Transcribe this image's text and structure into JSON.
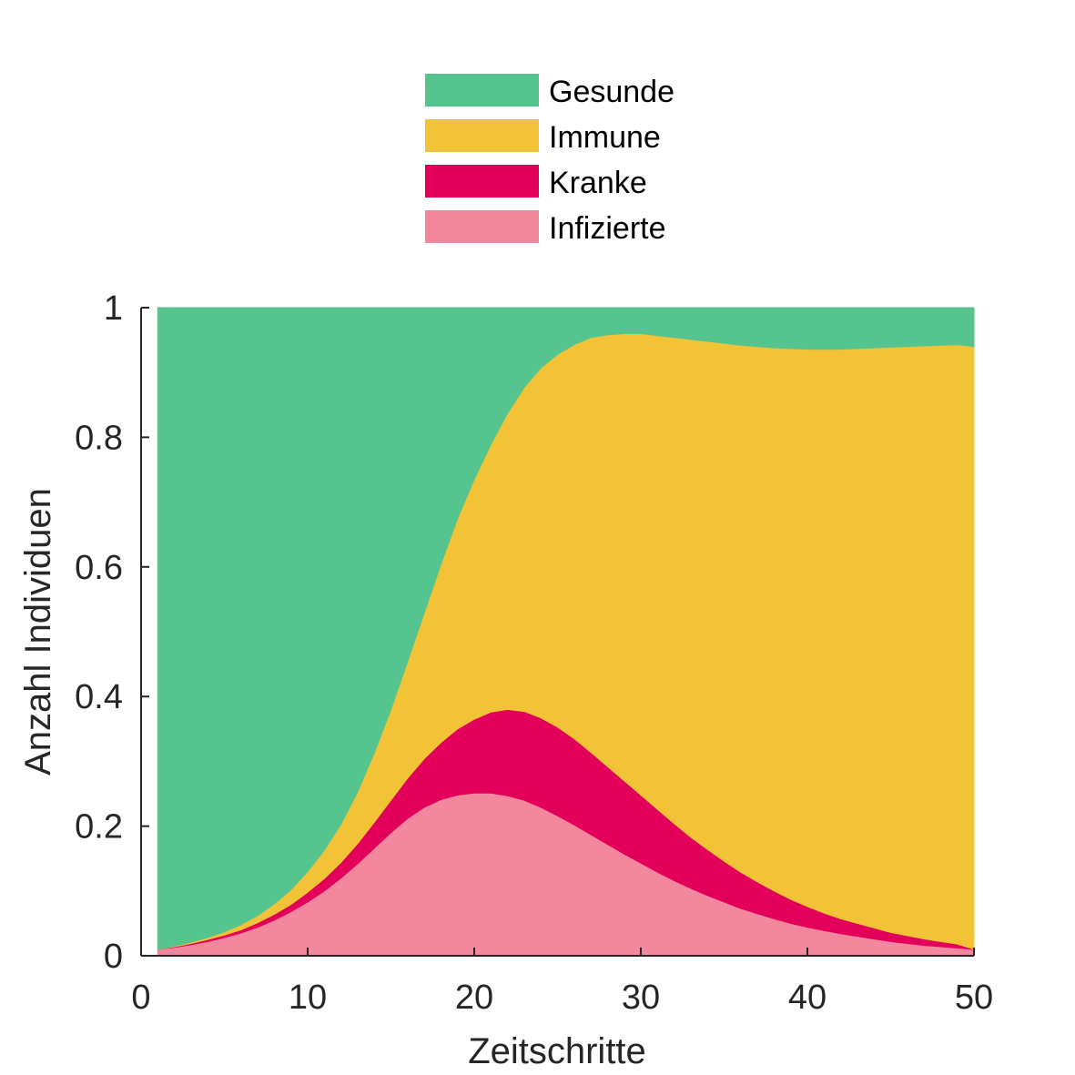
{
  "chart_data": {
    "type": "area",
    "stacked": true,
    "xlabel": "Zeitschritte",
    "ylabel": "Anzahl Individuen",
    "xlim": [
      0,
      50
    ],
    "ylim": [
      0,
      1
    ],
    "xticks": [
      0,
      10,
      20,
      30,
      40,
      50
    ],
    "xtick_labels": [
      "0",
      "10",
      "20",
      "30",
      "40",
      "50"
    ],
    "yticks": [
      0,
      0.2,
      0.4,
      0.6,
      0.8,
      1
    ],
    "ytick_labels": [
      "0",
      "0.2",
      "0.4",
      "0.6",
      "0.8",
      "1"
    ],
    "grid": false,
    "legend_position": "top-center",
    "legend_order": [
      "Gesunde",
      "Immune",
      "Kranke",
      "Infizierte"
    ],
    "x": [
      1,
      2,
      3,
      4,
      5,
      6,
      7,
      8,
      9,
      10,
      11,
      12,
      13,
      14,
      15,
      16,
      17,
      18,
      19,
      20,
      21,
      22,
      23,
      24,
      25,
      26,
      27,
      28,
      29,
      30,
      31,
      32,
      33,
      34,
      35,
      36,
      37,
      38,
      39,
      40,
      41,
      42,
      43,
      44,
      45,
      46,
      47,
      48,
      49,
      50
    ],
    "series": [
      {
        "name": "Infizierte",
        "color": "#F2879E",
        "values": [
          0.01,
          0.013,
          0.017,
          0.022,
          0.028,
          0.035,
          0.044,
          0.055,
          0.068,
          0.083,
          0.1,
          0.12,
          0.142,
          0.166,
          0.19,
          0.212,
          0.229,
          0.241,
          0.248,
          0.251,
          0.251,
          0.247,
          0.24,
          0.229,
          0.216,
          0.202,
          0.187,
          0.172,
          0.157,
          0.143,
          0.129,
          0.116,
          0.104,
          0.093,
          0.083,
          0.073,
          0.065,
          0.057,
          0.05,
          0.044,
          0.039,
          0.034,
          0.03,
          0.026,
          0.022,
          0.019,
          0.016,
          0.014,
          0.012,
          0.01
        ]
      },
      {
        "name": "Kranke",
        "color": "#E2005A",
        "values": [
          0.0,
          0.001,
          0.002,
          0.003,
          0.004,
          0.005,
          0.007,
          0.009,
          0.011,
          0.015,
          0.019,
          0.024,
          0.031,
          0.04,
          0.05,
          0.062,
          0.075,
          0.088,
          0.102,
          0.114,
          0.125,
          0.133,
          0.137,
          0.138,
          0.137,
          0.133,
          0.127,
          0.12,
          0.113,
          0.105,
          0.097,
          0.088,
          0.079,
          0.071,
          0.063,
          0.056,
          0.049,
          0.043,
          0.037,
          0.032,
          0.027,
          0.023,
          0.02,
          0.017,
          0.014,
          0.012,
          0.01,
          0.008,
          0.006,
          0.0
        ]
      },
      {
        "name": "Immune",
        "color": "#F2C237",
        "values": [
          0.0,
          0.001,
          0.002,
          0.003,
          0.005,
          0.008,
          0.011,
          0.016,
          0.023,
          0.032,
          0.044,
          0.059,
          0.08,
          0.107,
          0.14,
          0.18,
          0.225,
          0.275,
          0.325,
          0.37,
          0.413,
          0.457,
          0.5,
          0.54,
          0.575,
          0.608,
          0.64,
          0.666,
          0.69,
          0.712,
          0.731,
          0.75,
          0.768,
          0.784,
          0.799,
          0.813,
          0.826,
          0.838,
          0.85,
          0.86,
          0.87,
          0.879,
          0.887,
          0.895,
          0.903,
          0.909,
          0.915,
          0.92,
          0.925,
          0.93
        ]
      },
      {
        "name": "Gesunde",
        "color": "#56C48E",
        "values": [
          0.99,
          0.985,
          0.979,
          0.972,
          0.963,
          0.952,
          0.938,
          0.92,
          0.898,
          0.87,
          0.837,
          0.797,
          0.747,
          0.687,
          0.62,
          0.546,
          0.471,
          0.396,
          0.325,
          0.265,
          0.211,
          0.163,
          0.123,
          0.093,
          0.072,
          0.057,
          0.046,
          0.042,
          0.04,
          0.04,
          0.043,
          0.046,
          0.049,
          0.052,
          0.055,
          0.058,
          0.06,
          0.062,
          0.063,
          0.064,
          0.064,
          0.064,
          0.063,
          0.062,
          0.061,
          0.06,
          0.059,
          0.058,
          0.057,
          0.06
        ]
      }
    ]
  }
}
